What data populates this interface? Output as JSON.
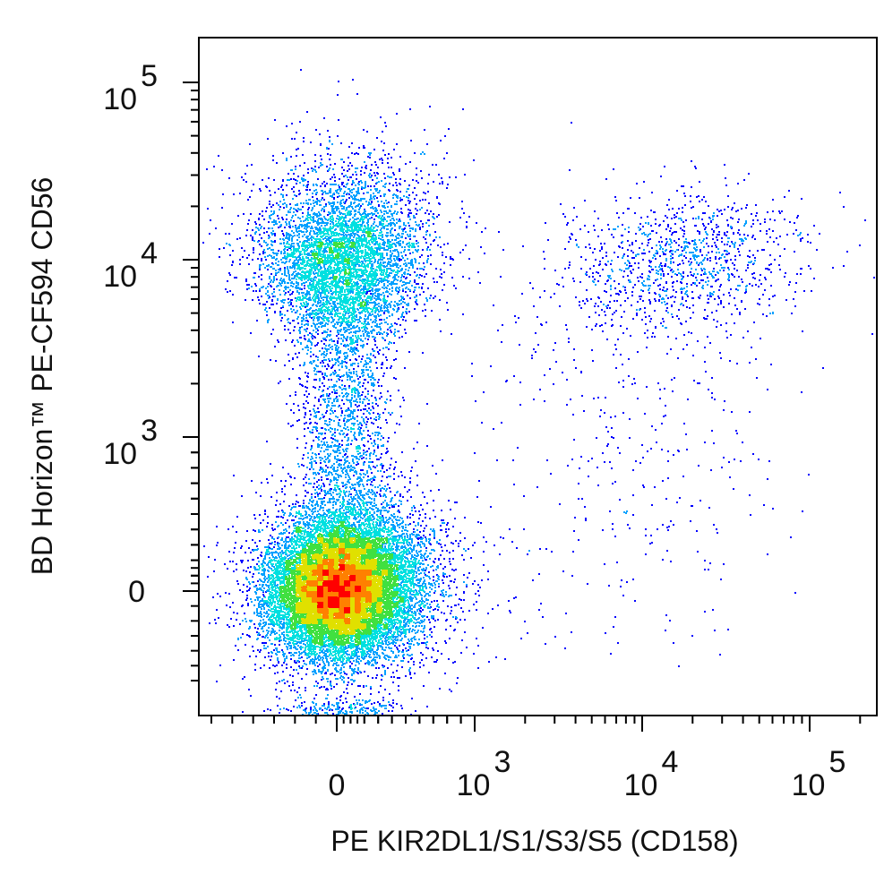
{
  "chart_data": {
    "type": "scatter",
    "subtype": "flow-cytometry-pseudocolor-density",
    "xlabel": "PE KIR2DL1/S1/S3/S5 (CD158)",
    "ylabel": "BD Horizon™ PE-CF594 CD56",
    "x_scale": "biexponential",
    "y_scale": "biexponential",
    "x_ticks": [
      {
        "value": 0,
        "label": "0",
        "exp": ""
      },
      {
        "value": 1000,
        "label": "10",
        "exp": "3"
      },
      {
        "value": 10000,
        "label": "10",
        "exp": "4"
      },
      {
        "value": 100000,
        "label": "10",
        "exp": "5"
      }
    ],
    "y_ticks": [
      {
        "value": 0,
        "label": "0",
        "exp": ""
      },
      {
        "value": 1000,
        "label": "10",
        "exp": "3"
      },
      {
        "value": 10000,
        "label": "10",
        "exp": "4"
      },
      {
        "value": 100000,
        "label": "10",
        "exp": "5"
      }
    ],
    "xlim": [
      -300,
      200000
    ],
    "ylim": [
      -300,
      200000
    ],
    "grid": false,
    "legend": "none",
    "color_map": [
      "#0000ff",
      "#00a0ff",
      "#00e0e0",
      "#40e040",
      "#e0e000",
      "#ff8000",
      "#ff0000"
    ],
    "populations": [
      {
        "center": [
          0,
          0
        ],
        "approx_share": 0.72,
        "density": "highest"
      },
      {
        "center": [
          0,
          10000
        ],
        "approx_share": 0.17,
        "density": "medium"
      },
      {
        "center": [
          0,
          1000
        ],
        "approx_share": 0.06,
        "density": "low"
      },
      {
        "center": [
          15000,
          11000
        ],
        "approx_share": 0.05,
        "density": "low"
      }
    ]
  }
}
